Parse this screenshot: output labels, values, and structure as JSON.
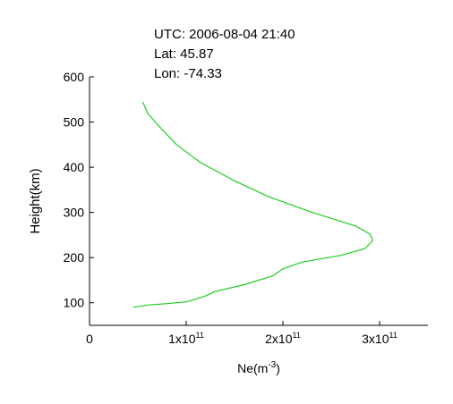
{
  "info": {
    "utc": "UTC: 2006-08-04 21:40",
    "lat": "Lat: 45.87",
    "lon": "Lon: -74.33"
  },
  "chart_data": {
    "type": "line",
    "xlabel": "Ne(m",
    "xlabel_sup": "-3",
    "xlabel_end": ")",
    "ylabel": "Height(km)",
    "xlim": [
      0,
      350000000000
    ],
    "ylim": [
      50,
      600
    ],
    "y_ticks": [
      100,
      200,
      300,
      400,
      500,
      600
    ],
    "y_tick_labels": [
      "100",
      "200",
      "300",
      "400",
      "500",
      "600"
    ],
    "x_ticks": [
      {
        "value": 0,
        "mantissa": "0",
        "exp": ""
      },
      {
        "value": 100000000000,
        "mantissa": "1x10",
        "exp": "11"
      },
      {
        "value": 200000000000,
        "mantissa": "2x10",
        "exp": "11"
      },
      {
        "value": 300000000000,
        "mantissa": "3x10",
        "exp": "11"
      }
    ],
    "grid": false,
    "series": [
      {
        "color": "#22cc22",
        "points": [
          {
            "ne": 45000000000,
            "h": 90
          },
          {
            "ne": 60000000000,
            "h": 95
          },
          {
            "ne": 80000000000,
            "h": 98
          },
          {
            "ne": 100000000000,
            "h": 102
          },
          {
            "ne": 110000000000,
            "h": 108
          },
          {
            "ne": 120000000000,
            "h": 115
          },
          {
            "ne": 130000000000,
            "h": 125
          },
          {
            "ne": 160000000000,
            "h": 140
          },
          {
            "ne": 190000000000,
            "h": 160
          },
          {
            "ne": 200000000000,
            "h": 175
          },
          {
            "ne": 220000000000,
            "h": 190
          },
          {
            "ne": 260000000000,
            "h": 205
          },
          {
            "ne": 285000000000,
            "h": 220
          },
          {
            "ne": 293000000000,
            "h": 238
          },
          {
            "ne": 290000000000,
            "h": 252
          },
          {
            "ne": 275000000000,
            "h": 270
          },
          {
            "ne": 230000000000,
            "h": 300
          },
          {
            "ne": 185000000000,
            "h": 335
          },
          {
            "ne": 150000000000,
            "h": 370
          },
          {
            "ne": 115000000000,
            "h": 410
          },
          {
            "ne": 90000000000,
            "h": 450
          },
          {
            "ne": 70000000000,
            "h": 495
          },
          {
            "ne": 60000000000,
            "h": 520
          },
          {
            "ne": 55000000000,
            "h": 545
          }
        ]
      }
    ]
  }
}
